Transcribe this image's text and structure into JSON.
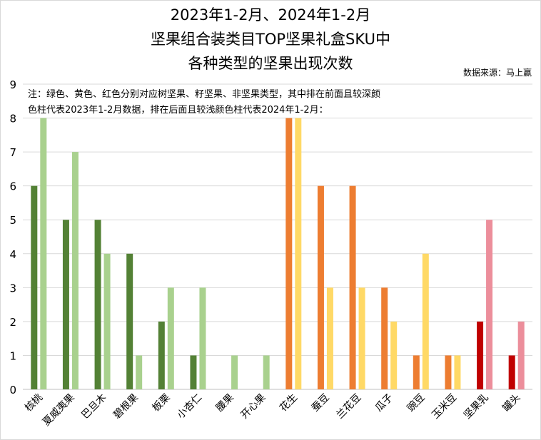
{
  "title_lines": [
    "2023年1-2月、2024年1-2月",
    "坚果组合装类目TOP坚果礼盒SKU中",
    "各种类型的坚果出现次数"
  ],
  "source": "数据来源：马上赢",
  "note_lines": [
    "注：绿色、黄色、红色分别对应树坚果、籽坚果、非坚果类型，其中排在前面且较深颜",
    "色柱代表2023年1-2月数据，排在后面且较浅颜色柱代表2024年1-2月："
  ],
  "colors": {
    "tree_2023": "#538135",
    "tree_2024": "#a9d18e",
    "seed_2023": "#ed7d31",
    "seed_2024": "#ffd966",
    "non_2023": "#c00000",
    "non_2024": "#ec8e9b",
    "grid": "#d9d9d9"
  },
  "chart_data": {
    "type": "bar",
    "title": "2023年1-2月、2024年1-2月 坚果组合装类目TOP坚果礼盒SKU中 各种类型的坚果出现次数",
    "xlabel": "",
    "ylabel": "",
    "ylim": [
      0,
      9
    ],
    "yticks": [
      "0",
      "1",
      "2",
      "3",
      "4",
      "5",
      "6",
      "7",
      "8",
      "9"
    ],
    "grid": true,
    "categories": [
      "核桃",
      "夏威夷果",
      "巴旦木",
      "碧根果",
      "板栗",
      "小杏仁",
      "腰果",
      "开心果",
      "花生",
      "蚕豆",
      "兰花豆",
      "瓜子",
      "豌豆",
      "玉米豆",
      "坚果乳",
      "罐头"
    ],
    "category_type": [
      "tree",
      "tree",
      "tree",
      "tree",
      "tree",
      "tree",
      "tree",
      "tree",
      "seed",
      "seed",
      "seed",
      "seed",
      "seed",
      "seed",
      "non",
      "non"
    ],
    "series": [
      {
        "values": [
          6,
          5,
          5,
          4,
          2,
          1,
          0,
          0,
          8,
          6,
          6,
          3,
          1,
          1,
          2,
          1
        ]
      },
      {
        "values": [
          8,
          7,
          4,
          1,
          3,
          3,
          1,
          1,
          8,
          3,
          3,
          2,
          4,
          1,
          5,
          2
        ]
      }
    ]
  }
}
